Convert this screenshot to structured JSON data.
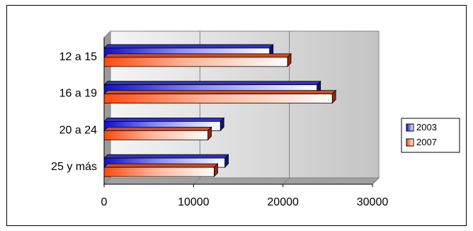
{
  "chart_data": {
    "type": "bar",
    "orientation": "horizontal",
    "title": "",
    "categories": [
      "12 a 15",
      "16 a 19",
      "20 a 24",
      "25 y más"
    ],
    "series": [
      {
        "name": "2003",
        "values": [
          18500,
          23800,
          13000,
          13500
        ],
        "color": "#1f1fd6"
      },
      {
        "name": "2007",
        "values": [
          20500,
          25500,
          11600,
          12300
        ],
        "color": "#ff5a1f"
      }
    ],
    "xlim": [
      0,
      30000
    ],
    "xticks": [
      "0",
      "10000",
      "20000",
      "30000"
    ],
    "grid": true,
    "legend_position": "right"
  }
}
